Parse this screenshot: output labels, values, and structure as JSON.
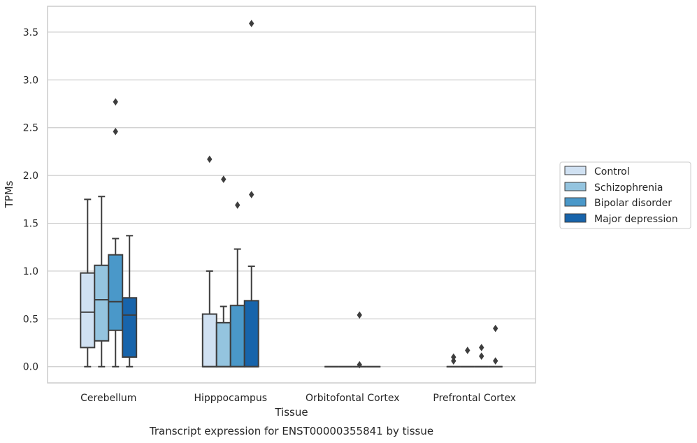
{
  "chart_data": {
    "type": "box",
    "title": "Transcript expression for ENST00000355841 by tissue",
    "xlabel": "Tissue",
    "ylabel": "TPMs",
    "ylim": [
      -0.17,
      3.77
    ],
    "yticks": [
      0.0,
      0.5,
      1.0,
      1.5,
      2.0,
      2.5,
      3.0,
      3.5
    ],
    "ytick_labels": [
      "0.0",
      "0.5",
      "1.0",
      "1.5",
      "2.0",
      "2.5",
      "3.0",
      "3.5"
    ],
    "grid": "horizontal",
    "legend_position": "right",
    "categories": [
      "Cerebellum",
      "Hipppocampus",
      "Orbitofontal Cortex",
      "Prefrontal Cortex"
    ],
    "series": [
      {
        "name": "Control",
        "color": "#d0e1f2",
        "boxes": [
          {
            "min": 0.0,
            "q1": 0.2,
            "median": 0.57,
            "q3": 0.98,
            "max": 1.75,
            "outliers": []
          },
          {
            "min": 0.0,
            "q1": 0.0,
            "median": 0.0,
            "q3": 0.55,
            "max": 1.0,
            "outliers": [
              2.17
            ]
          },
          {
            "min": 0.0,
            "q1": 0.0,
            "median": 0.0,
            "q3": 0.0,
            "max": 0.0,
            "outliers": []
          },
          {
            "min": 0.0,
            "q1": 0.0,
            "median": 0.0,
            "q3": 0.0,
            "max": 0.0,
            "outliers": [
              0.1,
              0.06
            ]
          }
        ]
      },
      {
        "name": "Schizophrenia",
        "color": "#94c4df",
        "boxes": [
          {
            "min": 0.0,
            "q1": 0.27,
            "median": 0.7,
            "q3": 1.06,
            "max": 1.78,
            "outliers": []
          },
          {
            "min": 0.0,
            "q1": 0.0,
            "median": 0.0,
            "q3": 0.46,
            "max": 0.63,
            "outliers": [
              1.96
            ]
          },
          {
            "min": 0.0,
            "q1": 0.0,
            "median": 0.0,
            "q3": 0.0,
            "max": 0.0,
            "outliers": []
          },
          {
            "min": 0.0,
            "q1": 0.0,
            "median": 0.0,
            "q3": 0.0,
            "max": 0.0,
            "outliers": [
              0.17
            ]
          }
        ]
      },
      {
        "name": "Bipolar disorder",
        "color": "#4a98c9",
        "boxes": [
          {
            "min": 0.0,
            "q1": 0.38,
            "median": 0.68,
            "q3": 1.17,
            "max": 1.34,
            "outliers": [
              2.77,
              2.46
            ]
          },
          {
            "min": 0.0,
            "q1": 0.0,
            "median": 0.0,
            "q3": 0.64,
            "max": 1.23,
            "outliers": [
              1.69
            ]
          },
          {
            "min": 0.0,
            "q1": 0.0,
            "median": 0.0,
            "q3": 0.0,
            "max": 0.0,
            "outliers": [
              0.54,
              0.02
            ]
          },
          {
            "min": 0.0,
            "q1": 0.0,
            "median": 0.0,
            "q3": 0.0,
            "max": 0.0,
            "outliers": [
              0.2,
              0.11
            ]
          }
        ]
      },
      {
        "name": "Major depression",
        "color": "#1764ab",
        "boxes": [
          {
            "min": 0.0,
            "q1": 0.1,
            "median": 0.54,
            "q3": 0.72,
            "max": 1.37,
            "outliers": []
          },
          {
            "min": 0.0,
            "q1": 0.0,
            "median": 0.0,
            "q3": 0.69,
            "max": 1.05,
            "outliers": [
              3.59,
              1.8
            ]
          },
          {
            "min": 0.0,
            "q1": 0.0,
            "median": 0.0,
            "q3": 0.0,
            "max": 0.0,
            "outliers": []
          },
          {
            "min": 0.0,
            "q1": 0.0,
            "median": 0.0,
            "q3": 0.0,
            "max": 0.0,
            "outliers": [
              0.4,
              0.06
            ]
          }
        ]
      }
    ]
  }
}
